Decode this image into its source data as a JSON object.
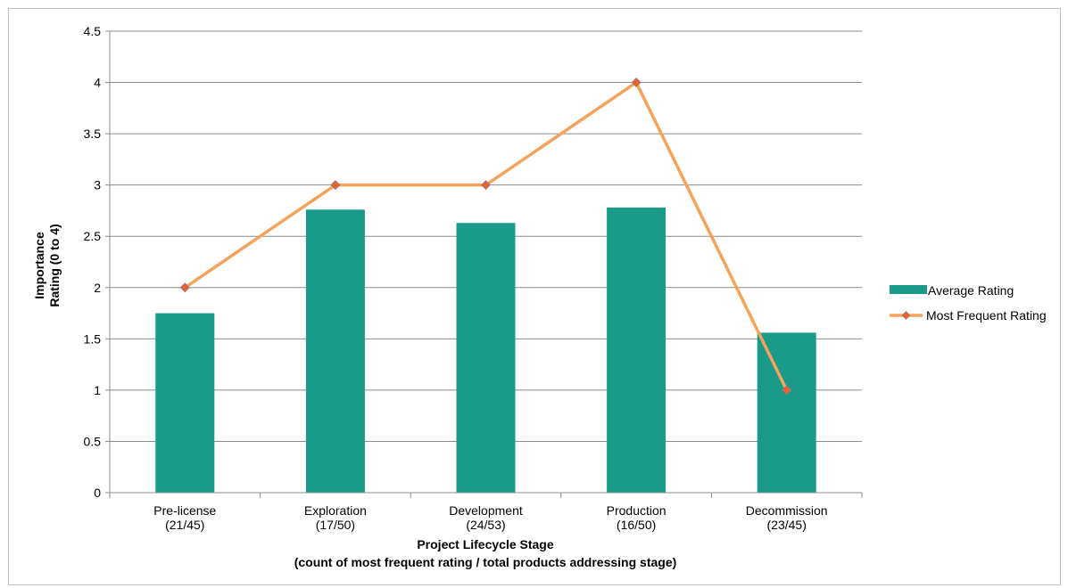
{
  "chart_data": {
    "type": "bar",
    "categories": [
      [
        "Pre-license",
        "(21/45)"
      ],
      [
        "Exploration",
        "(17/50)"
      ],
      [
        "Development",
        "(24/53)"
      ],
      [
        "Production",
        "(16/50)"
      ],
      [
        "Decommission",
        "(23/45)"
      ]
    ],
    "series": [
      {
        "name": "Average Rating",
        "type": "bar",
        "color": "#1a9b8a",
        "values": [
          1.75,
          2.76,
          2.63,
          2.78,
          1.56
        ]
      },
      {
        "name": "Most Frequent Rating",
        "type": "line",
        "color": "#f5a35a",
        "marker_color": "#e8622a",
        "values": [
          2,
          3,
          3,
          4,
          1
        ]
      }
    ],
    "ylabel": [
      "Importance",
      "Rating (0 to 4)"
    ],
    "xlabel": [
      "Project Lifecycle Stage",
      "(count of most frequent rating / total products addressing stage)"
    ],
    "ylim": [
      0,
      4.5
    ],
    "yticks": [
      "0",
      "0.5",
      "1",
      "1.5",
      "2",
      "2.5",
      "3",
      "3.5",
      "4",
      "4.5"
    ],
    "grid": true,
    "legend": "right"
  }
}
